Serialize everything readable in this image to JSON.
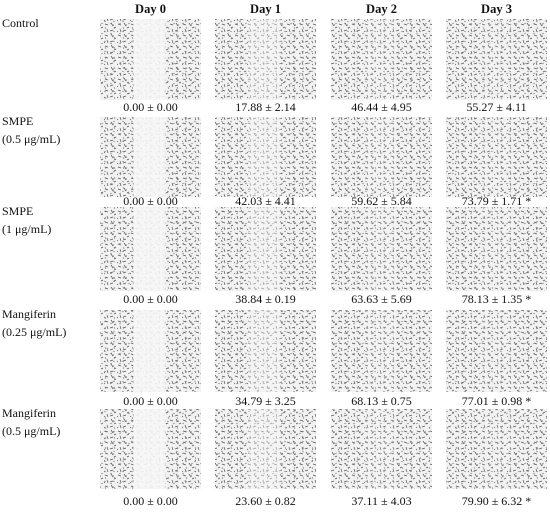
{
  "figure": {
    "columns": [
      "Day 0",
      "Day 1",
      "Day 2",
      "Day 3"
    ],
    "rows": [
      {
        "label": [
          "Control"
        ],
        "captions": [
          "0.00 ± 0.00",
          "17.88 ± 2.14",
          "46.44 ± 4.95",
          "55.27 ± 4.11"
        ]
      },
      {
        "label": [
          "SMPE",
          "(0.5 μg/mL)"
        ],
        "captions": [
          "0.00 ± 0.00",
          "42.03 ± 4.41",
          "59.62 ± 5.84",
          "73.79 ± 1.71 *"
        ]
      },
      {
        "label": [
          "SMPE",
          "(1 μg/mL)"
        ],
        "captions": [
          "0.00 ± 0.00",
          "38.84 ± 0.19",
          "63.63 ± 5.69",
          "78.13 ± 1.35 *"
        ]
      },
      {
        "label": [
          "Mangiferin",
          "(0.25 μg/mL)"
        ],
        "captions": [
          "0.00 ± 0.00",
          "34.79 ± 3.25",
          "68.13 ± 0.75",
          "77.01 ± 0.98 *"
        ]
      },
      {
        "label": [
          "Mangiferin",
          "(0.5 μg/mL)"
        ],
        "captions": [
          "0.00 ± 0.00",
          "23.60 ± 0.82",
          "37.11 ± 4.03",
          "79.90 ± 6.32 *"
        ]
      }
    ]
  }
}
